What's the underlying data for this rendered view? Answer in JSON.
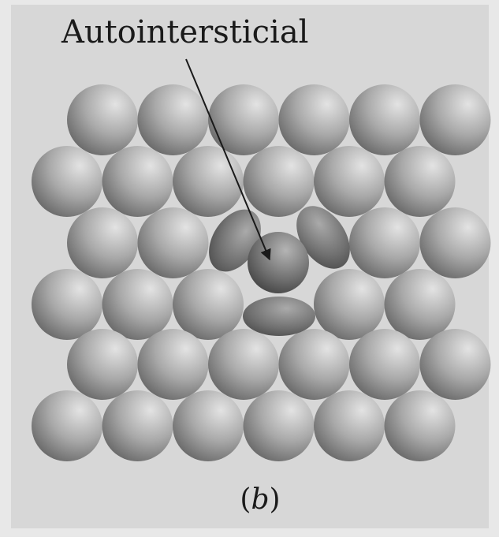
{
  "figure": {
    "annotation": "Autointersticial",
    "caption_open": "(",
    "caption_letter": "b",
    "caption_close": ")"
  },
  "colors": {
    "panel": "#d7d7d7",
    "frame": "#e8e8e8",
    "atom_light": "#e3e3e3",
    "atom_mid": "#a9a9a9",
    "atom_dark": "#6c6c6c",
    "interstitial_light": "#b4b4b4",
    "interstitial_dark": "#3e3e3e",
    "text": "#1a1a1a"
  },
  "lattice": {
    "rows": 6,
    "atoms_per_row": 6,
    "vacant_sites": [
      {
        "row": 2,
        "col": 2
      },
      {
        "row": 2,
        "col": 3
      },
      {
        "row": 3,
        "col": 3
      }
    ]
  }
}
